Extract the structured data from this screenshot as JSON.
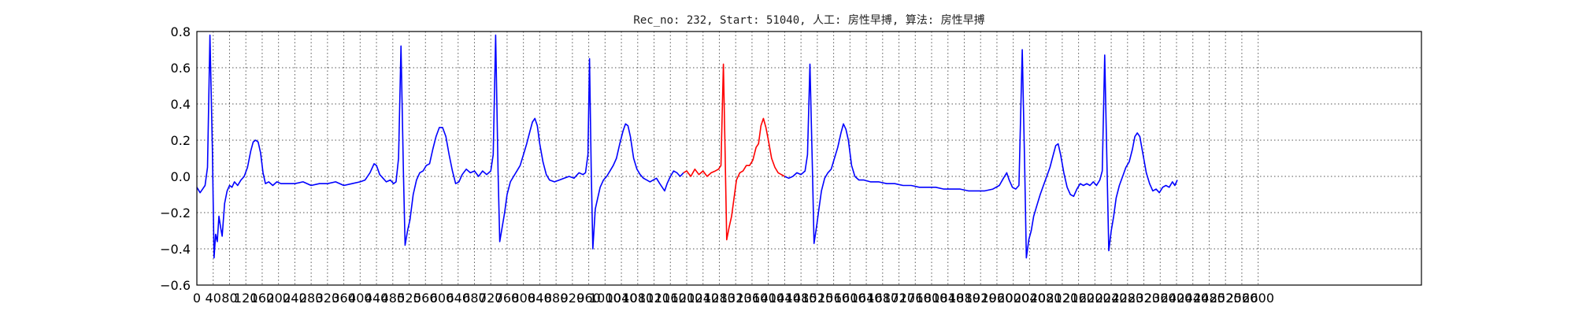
{
  "chart_data": {
    "type": "line",
    "title": "Rec_no: 232, Start: 51040, 人工: 房性早搏, 算法: 房性早搏",
    "xlabel": "",
    "ylabel": "",
    "xlim": [
      0,
      3000
    ],
    "ylim": [
      -0.6,
      0.8
    ],
    "grid": true,
    "xticks": [
      0,
      40,
      80,
      120,
      160,
      200,
      240,
      280,
      320,
      360,
      400,
      440,
      480,
      520,
      560,
      600,
      640,
      680,
      720,
      760,
      800,
      840,
      880,
      920,
      960,
      1000,
      1040,
      1080,
      1120,
      1160,
      1200,
      1240,
      1280,
      1320,
      1360,
      1400,
      1440,
      1480,
      1520,
      1560,
      1600,
      1640,
      1680,
      1720,
      1760,
      1800,
      1840,
      1880,
      1920,
      1960,
      2000,
      2040,
      2080,
      2120,
      2160,
      2200,
      2240,
      2280,
      2320,
      2360,
      2400,
      2440,
      2480,
      2520,
      2560,
      2600
    ],
    "yticks": [
      -0.6,
      -0.4,
      -0.2,
      0.0,
      0.2,
      0.4,
      0.6,
      0.8
    ],
    "ytick_labels": [
      "−0.6",
      "−0.4",
      "−0.2",
      "0.0",
      "0.2",
      "0.4",
      "0.6",
      "0.8"
    ],
    "series_colors": {
      "normal": "#0000ff",
      "highlight": "#ff0000"
    },
    "highlight_range": [
      1200,
      1440
    ],
    "points": [
      [
        0,
        -0.06
      ],
      [
        8,
        -0.09
      ],
      [
        14,
        -0.07
      ],
      [
        20,
        -0.05
      ],
      [
        26,
        0.05
      ],
      [
        32,
        0.78
      ],
      [
        38,
        0.15
      ],
      [
        42,
        -0.45
      ],
      [
        46,
        -0.32
      ],
      [
        50,
        -0.36
      ],
      [
        54,
        -0.22
      ],
      [
        58,
        -0.28
      ],
      [
        62,
        -0.33
      ],
      [
        68,
        -0.15
      ],
      [
        74,
        -0.08
      ],
      [
        80,
        -0.05
      ],
      [
        86,
        -0.06
      ],
      [
        92,
        -0.03
      ],
      [
        100,
        -0.05
      ],
      [
        108,
        -0.02
      ],
      [
        116,
        0.0
      ],
      [
        124,
        0.05
      ],
      [
        132,
        0.14
      ],
      [
        138,
        0.19
      ],
      [
        144,
        0.2
      ],
      [
        150,
        0.19
      ],
      [
        156,
        0.13
      ],
      [
        162,
        0.02
      ],
      [
        168,
        -0.04
      ],
      [
        176,
        -0.03
      ],
      [
        186,
        -0.05
      ],
      [
        196,
        -0.03
      ],
      [
        206,
        -0.04
      ],
      [
        220,
        -0.04
      ],
      [
        240,
        -0.04
      ],
      [
        260,
        -0.03
      ],
      [
        280,
        -0.05
      ],
      [
        300,
        -0.04
      ],
      [
        320,
        -0.04
      ],
      [
        340,
        -0.03
      ],
      [
        360,
        -0.05
      ],
      [
        380,
        -0.04
      ],
      [
        400,
        -0.03
      ],
      [
        412,
        -0.02
      ],
      [
        424,
        0.02
      ],
      [
        434,
        0.07
      ],
      [
        440,
        0.06
      ],
      [
        448,
        0.01
      ],
      [
        456,
        -0.01
      ],
      [
        464,
        -0.03
      ],
      [
        474,
        -0.02
      ],
      [
        482,
        -0.04
      ],
      [
        488,
        -0.03
      ],
      [
        494,
        0.1
      ],
      [
        500,
        0.72
      ],
      [
        506,
        0.02
      ],
      [
        510,
        -0.38
      ],
      [
        516,
        -0.3
      ],
      [
        522,
        -0.24
      ],
      [
        530,
        -0.1
      ],
      [
        538,
        -0.02
      ],
      [
        546,
        0.02
      ],
      [
        554,
        0.03
      ],
      [
        562,
        0.06
      ],
      [
        570,
        0.07
      ],
      [
        578,
        0.15
      ],
      [
        586,
        0.22
      ],
      [
        594,
        0.27
      ],
      [
        602,
        0.27
      ],
      [
        610,
        0.22
      ],
      [
        618,
        0.12
      ],
      [
        626,
        0.03
      ],
      [
        634,
        -0.04
      ],
      [
        642,
        -0.03
      ],
      [
        650,
        0.01
      ],
      [
        660,
        0.04
      ],
      [
        670,
        0.02
      ],
      [
        680,
        0.03
      ],
      [
        690,
        0.0
      ],
      [
        700,
        0.03
      ],
      [
        710,
        0.01
      ],
      [
        720,
        0.03
      ],
      [
        726,
        0.12
      ],
      [
        732,
        0.78
      ],
      [
        738,
        0.02
      ],
      [
        742,
        -0.36
      ],
      [
        748,
        -0.28
      ],
      [
        754,
        -0.2
      ],
      [
        760,
        -0.1
      ],
      [
        768,
        -0.03
      ],
      [
        776,
        0.0
      ],
      [
        784,
        0.03
      ],
      [
        792,
        0.06
      ],
      [
        800,
        0.12
      ],
      [
        808,
        0.18
      ],
      [
        816,
        0.25
      ],
      [
        822,
        0.3
      ],
      [
        828,
        0.32
      ],
      [
        834,
        0.28
      ],
      [
        840,
        0.18
      ],
      [
        848,
        0.08
      ],
      [
        856,
        0.01
      ],
      [
        864,
        -0.02
      ],
      [
        876,
        -0.03
      ],
      [
        888,
        -0.02
      ],
      [
        900,
        -0.01
      ],
      [
        912,
        0.0
      ],
      [
        924,
        -0.01
      ],
      [
        936,
        0.02
      ],
      [
        946,
        0.01
      ],
      [
        952,
        0.02
      ],
      [
        958,
        0.12
      ],
      [
        962,
        0.65
      ],
      [
        966,
        0.05
      ],
      [
        970,
        -0.4
      ],
      [
        976,
        -0.18
      ],
      [
        982,
        -0.12
      ],
      [
        988,
        -0.06
      ],
      [
        996,
        -0.02
      ],
      [
        1004,
        0.0
      ],
      [
        1012,
        0.03
      ],
      [
        1020,
        0.06
      ],
      [
        1028,
        0.1
      ],
      [
        1036,
        0.18
      ],
      [
        1044,
        0.25
      ],
      [
        1050,
        0.29
      ],
      [
        1056,
        0.28
      ],
      [
        1062,
        0.22
      ],
      [
        1070,
        0.1
      ],
      [
        1078,
        0.04
      ],
      [
        1086,
        0.01
      ],
      [
        1094,
        -0.01
      ],
      [
        1102,
        -0.02
      ],
      [
        1110,
        -0.03
      ],
      [
        1118,
        -0.02
      ],
      [
        1126,
        -0.01
      ],
      [
        1134,
        -0.04
      ],
      [
        1140,
        -0.06
      ],
      [
        1146,
        -0.08
      ],
      [
        1152,
        -0.04
      ],
      [
        1160,
        0.0
      ],
      [
        1168,
        0.03
      ],
      [
        1176,
        0.02
      ],
      [
        1184,
        0.0
      ],
      [
        1192,
        0.02
      ],
      [
        1200,
        0.03
      ],
      [
        1210,
        0.0
      ],
      [
        1220,
        0.04
      ],
      [
        1230,
        0.01
      ],
      [
        1240,
        0.03
      ],
      [
        1250,
        0.0
      ],
      [
        1260,
        0.02
      ],
      [
        1270,
        0.03
      ],
      [
        1278,
        0.04
      ],
      [
        1284,
        0.06
      ],
      [
        1290,
        0.62
      ],
      [
        1294,
        0.15
      ],
      [
        1298,
        -0.35
      ],
      [
        1304,
        -0.28
      ],
      [
        1310,
        -0.22
      ],
      [
        1316,
        -0.12
      ],
      [
        1322,
        -0.02
      ],
      [
        1330,
        0.02
      ],
      [
        1338,
        0.03
      ],
      [
        1346,
        0.06
      ],
      [
        1354,
        0.06
      ],
      [
        1362,
        0.09
      ],
      [
        1370,
        0.16
      ],
      [
        1376,
        0.18
      ],
      [
        1382,
        0.28
      ],
      [
        1388,
        0.32
      ],
      [
        1394,
        0.27
      ],
      [
        1400,
        0.2
      ],
      [
        1408,
        0.1
      ],
      [
        1416,
        0.05
      ],
      [
        1424,
        0.02
      ],
      [
        1432,
        0.01
      ],
      [
        1440,
        0.0
      ],
      [
        1450,
        -0.01
      ],
      [
        1460,
        0.0
      ],
      [
        1470,
        0.02
      ],
      [
        1480,
        0.01
      ],
      [
        1490,
        0.03
      ],
      [
        1496,
        0.12
      ],
      [
        1502,
        0.62
      ],
      [
        1508,
        0.05
      ],
      [
        1512,
        -0.37
      ],
      [
        1518,
        -0.28
      ],
      [
        1524,
        -0.18
      ],
      [
        1530,
        -0.08
      ],
      [
        1538,
        -0.01
      ],
      [
        1546,
        0.02
      ],
      [
        1554,
        0.04
      ],
      [
        1562,
        0.1
      ],
      [
        1570,
        0.16
      ],
      [
        1578,
        0.24
      ],
      [
        1584,
        0.29
      ],
      [
        1590,
        0.26
      ],
      [
        1596,
        0.2
      ],
      [
        1604,
        0.06
      ],
      [
        1612,
        0.0
      ],
      [
        1622,
        -0.02
      ],
      [
        1634,
        -0.02
      ],
      [
        1650,
        -0.03
      ],
      [
        1670,
        -0.03
      ],
      [
        1690,
        -0.04
      ],
      [
        1710,
        -0.04
      ],
      [
        1730,
        -0.05
      ],
      [
        1750,
        -0.05
      ],
      [
        1770,
        -0.06
      ],
      [
        1790,
        -0.06
      ],
      [
        1810,
        -0.06
      ],
      [
        1830,
        -0.07
      ],
      [
        1850,
        -0.07
      ],
      [
        1870,
        -0.07
      ],
      [
        1890,
        -0.08
      ],
      [
        1910,
        -0.08
      ],
      [
        1930,
        -0.08
      ],
      [
        1950,
        -0.07
      ],
      [
        1966,
        -0.05
      ],
      [
        1976,
        -0.01
      ],
      [
        1984,
        0.02
      ],
      [
        1990,
        -0.02
      ],
      [
        1998,
        -0.06
      ],
      [
        2006,
        -0.07
      ],
      [
        2014,
        -0.05
      ],
      [
        2022,
        0.7
      ],
      [
        2028,
        0.05
      ],
      [
        2032,
        -0.45
      ],
      [
        2038,
        -0.35
      ],
      [
        2044,
        -0.3
      ],
      [
        2050,
        -0.22
      ],
      [
        2058,
        -0.16
      ],
      [
        2066,
        -0.1
      ],
      [
        2074,
        -0.05
      ],
      [
        2082,
        0.0
      ],
      [
        2090,
        0.05
      ],
      [
        2098,
        0.12
      ],
      [
        2104,
        0.17
      ],
      [
        2110,
        0.18
      ],
      [
        2116,
        0.12
      ],
      [
        2124,
        0.02
      ],
      [
        2132,
        -0.06
      ],
      [
        2140,
        -0.1
      ],
      [
        2148,
        -0.11
      ],
      [
        2156,
        -0.07
      ],
      [
        2164,
        -0.04
      ],
      [
        2172,
        -0.05
      ],
      [
        2180,
        -0.04
      ],
      [
        2188,
        -0.05
      ],
      [
        2196,
        -0.03
      ],
      [
        2204,
        -0.05
      ],
      [
        2212,
        -0.02
      ],
      [
        2218,
        0.03
      ],
      [
        2224,
        0.67
      ],
      [
        2230,
        0.02
      ],
      [
        2234,
        -0.41
      ],
      [
        2240,
        -0.3
      ],
      [
        2246,
        -0.22
      ],
      [
        2252,
        -0.12
      ],
      [
        2260,
        -0.05
      ],
      [
        2268,
        0.0
      ],
      [
        2276,
        0.05
      ],
      [
        2284,
        0.08
      ],
      [
        2292,
        0.15
      ],
      [
        2298,
        0.22
      ],
      [
        2304,
        0.24
      ],
      [
        2310,
        0.22
      ],
      [
        2318,
        0.12
      ],
      [
        2326,
        0.02
      ],
      [
        2334,
        -0.04
      ],
      [
        2342,
        -0.08
      ],
      [
        2350,
        -0.07
      ],
      [
        2358,
        -0.09
      ],
      [
        2366,
        -0.06
      ],
      [
        2374,
        -0.05
      ],
      [
        2382,
        -0.06
      ],
      [
        2390,
        -0.03
      ],
      [
        2396,
        -0.05
      ],
      [
        2402,
        -0.02
      ]
    ]
  }
}
